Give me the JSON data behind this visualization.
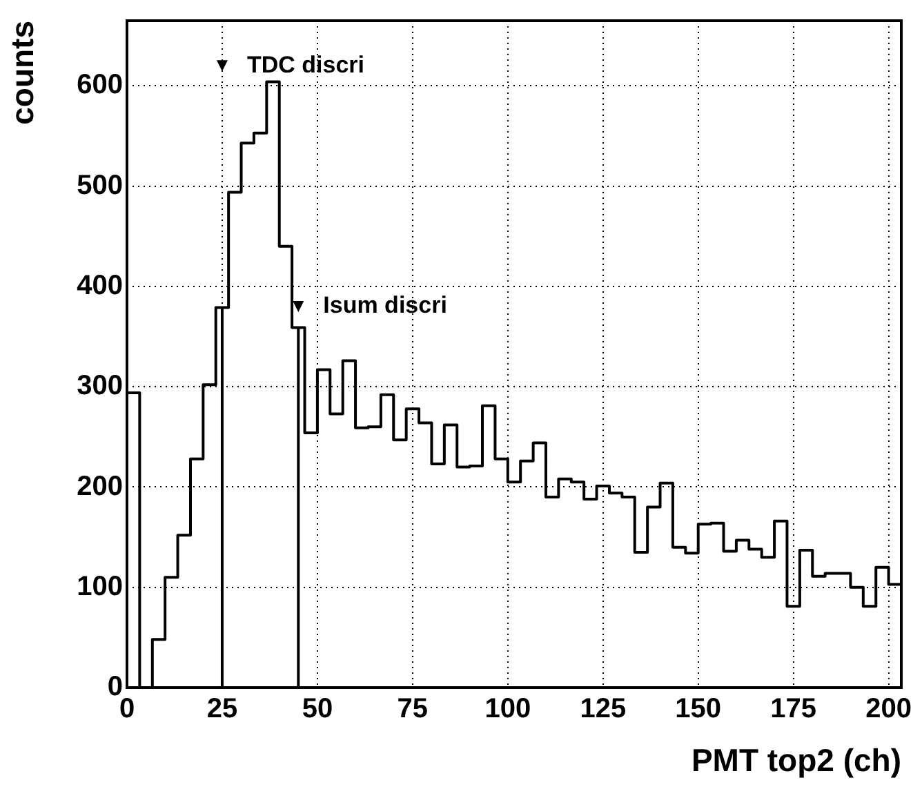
{
  "chart_data": {
    "type": "histogram",
    "xlabel": "PMT top2 (ch)",
    "ylabel": "counts",
    "bins": [
      0,
      3.33,
      6.67,
      10,
      13.33,
      16.67,
      20,
      23.33,
      26.67,
      30,
      33.33,
      36.67,
      40,
      43.33,
      46.67,
      50,
      53.33,
      56.67,
      60,
      63.33,
      66.67,
      70,
      73.33,
      76.67,
      80,
      83.33,
      86.67,
      90,
      93.33,
      96.67,
      100,
      103.33,
      106.67,
      110,
      113.33,
      116.67,
      120,
      123.33,
      126.67,
      130,
      133.33,
      136.67,
      140,
      143.33,
      146.67,
      150,
      153.33,
      156.67,
      160,
      163.33,
      166.67,
      170,
      173.33,
      176.67,
      180,
      183.33,
      186.67,
      190,
      193.33,
      196.67,
      200,
      203.33
    ],
    "values": [
      294,
      0,
      48,
      110,
      152,
      228,
      302,
      379,
      494,
      543,
      553,
      604,
      440,
      359,
      254,
      317,
      273,
      326,
      259,
      260,
      292,
      247,
      278,
      264,
      223,
      262,
      220,
      221,
      281,
      228,
      205,
      226,
      244,
      190,
      208,
      205,
      188,
      201,
      194,
      190,
      135,
      180,
      204,
      140,
      134,
      163,
      164,
      136,
      147,
      138,
      130,
      166,
      81,
      137,
      111,
      114,
      114,
      100,
      81,
      120,
      103
    ],
    "color": "#000000",
    "xlim": [
      0,
      203.33
    ],
    "xticks": [
      0,
      25,
      50,
      75,
      100,
      125,
      150,
      175,
      200
    ],
    "ylim": [
      0,
      665
    ],
    "yticks": [
      0,
      100,
      200,
      300,
      400,
      500,
      600
    ],
    "grid": true,
    "legend": false,
    "ref_lines": [
      {
        "axis": "x",
        "value": 25,
        "color": "#000000"
      },
      {
        "axis": "x",
        "value": 45,
        "color": "#000000"
      }
    ],
    "annotations": [
      {
        "text": "TDC discri",
        "x": 25,
        "y": 620
      },
      {
        "text": "Isum discri",
        "x": 45,
        "y": 380
      }
    ]
  }
}
